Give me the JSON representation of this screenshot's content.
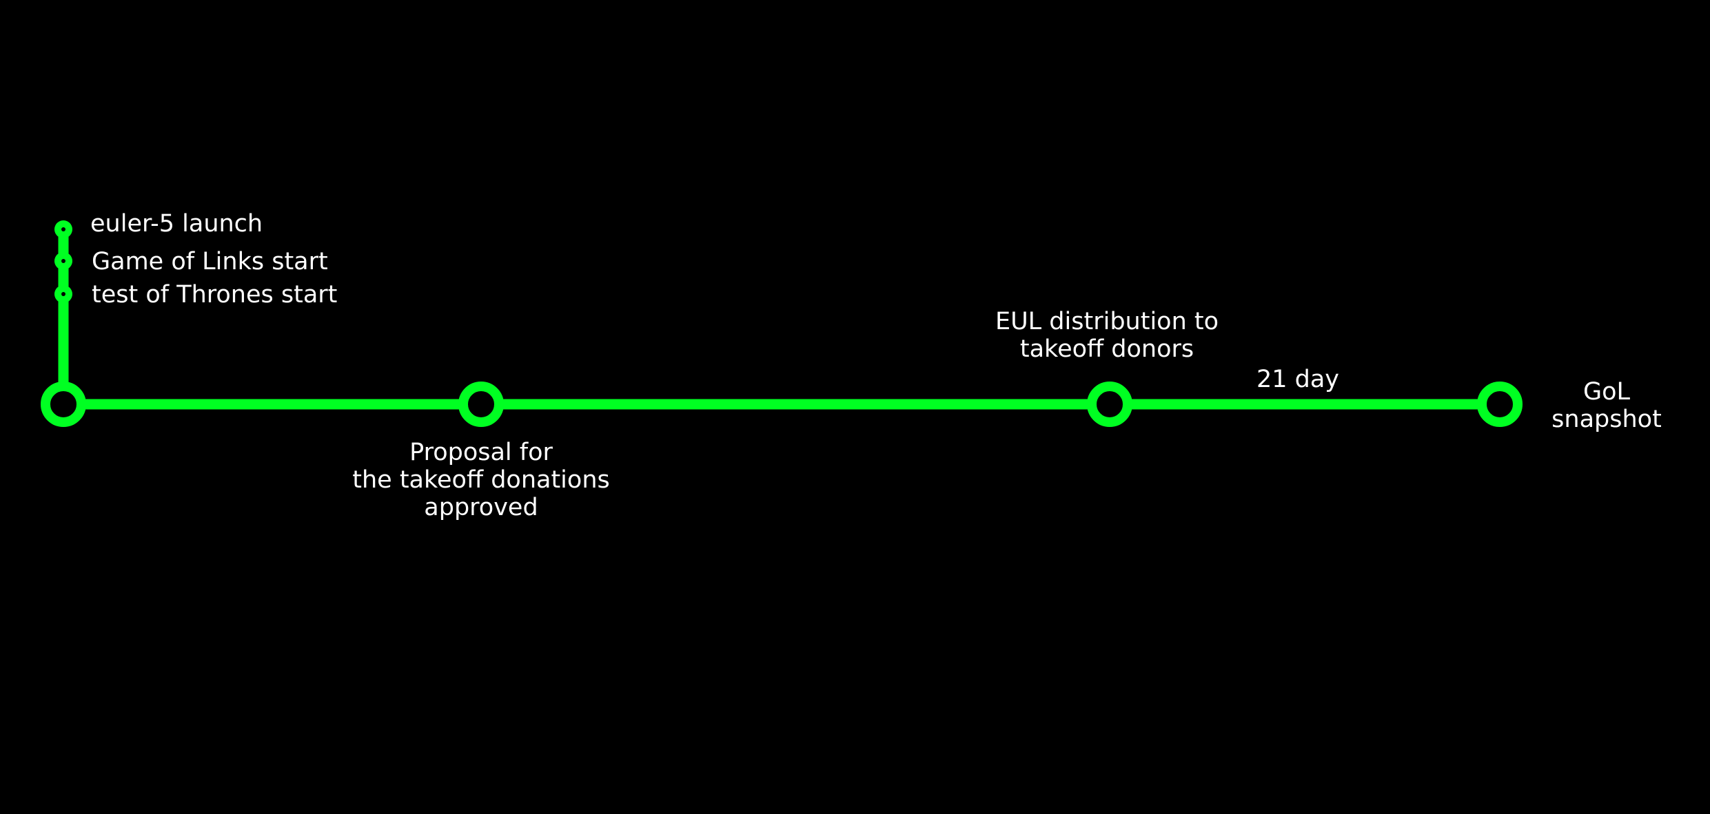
{
  "colors": {
    "background": "#000000",
    "line": "#00ff22",
    "text": "#ffffff"
  },
  "timeline": {
    "start_events": [
      {
        "label": "euler-5 launch"
      },
      {
        "label": "Game of Links start"
      },
      {
        "label": "test of Thrones start"
      }
    ],
    "milestones": [
      {
        "lines": []
      },
      {
        "lines": [
          "Proposal for",
          "the takeoff donations",
          "approved"
        ]
      },
      {
        "lines": [
          "EUL distribution to",
          "takeoff donors"
        ]
      },
      {
        "lines": [
          "GoL",
          "snapshot"
        ]
      }
    ],
    "interval_label": "21 day"
  }
}
